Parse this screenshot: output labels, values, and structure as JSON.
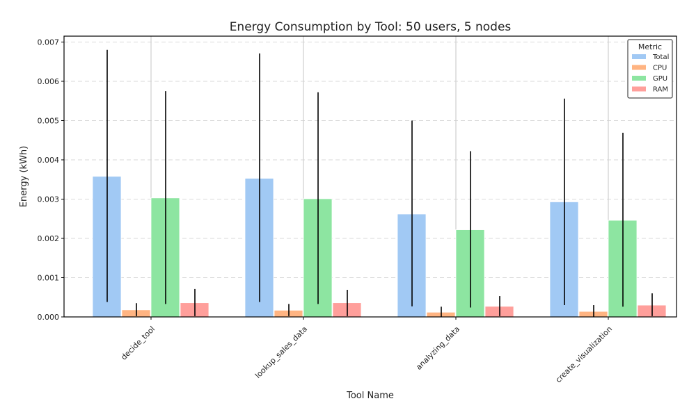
{
  "chart_data": {
    "type": "bar",
    "title": "Energy Consumption by Tool: 50 users, 5 nodes",
    "xlabel": "Tool Name",
    "ylabel": "Energy (kWh)",
    "ylim": [
      0,
      0.00715
    ],
    "yticks": [
      "0.000",
      "0.001",
      "0.002",
      "0.003",
      "0.004",
      "0.005",
      "0.006",
      "0.007"
    ],
    "grid": true,
    "legend_title": "Metric",
    "legend_position": "top-right",
    "categories": [
      "decide_tool",
      "lookup_sales_data",
      "analyzing_data",
      "create_visualization"
    ],
    "series": [
      {
        "name": "Total",
        "color": "#a1c9f4",
        "values": [
          0.00358,
          0.00353,
          0.00262,
          0.00293
        ],
        "err_low": [
          0.00038,
          0.00038,
          0.00027,
          0.0003
        ],
        "err_high": [
          0.0068,
          0.00671,
          0.005,
          0.00556
        ]
      },
      {
        "name": "CPU",
        "color": "#ffb482",
        "values": [
          0.00018,
          0.00017,
          0.00012,
          0.00014
        ],
        "err_low": [
          2e-05,
          2e-05,
          0.0,
          0.0
        ],
        "err_high": [
          0.00035,
          0.00033,
          0.00026,
          0.0003
        ]
      },
      {
        "name": "GPU",
        "color": "#8de5a1",
        "values": [
          0.00303,
          0.00301,
          0.00222,
          0.00246
        ],
        "err_low": [
          0.00033,
          0.00033,
          0.00024,
          0.00026
        ],
        "err_high": [
          0.00575,
          0.00572,
          0.00422,
          0.00469
        ]
      },
      {
        "name": "RAM",
        "color": "#ff9f9b",
        "values": [
          0.00036,
          0.00036,
          0.00027,
          0.0003
        ],
        "err_low": [
          2e-05,
          2e-05,
          2e-05,
          2e-05
        ],
        "err_high": [
          0.00071,
          0.00069,
          0.00053,
          0.0006
        ]
      }
    ]
  }
}
